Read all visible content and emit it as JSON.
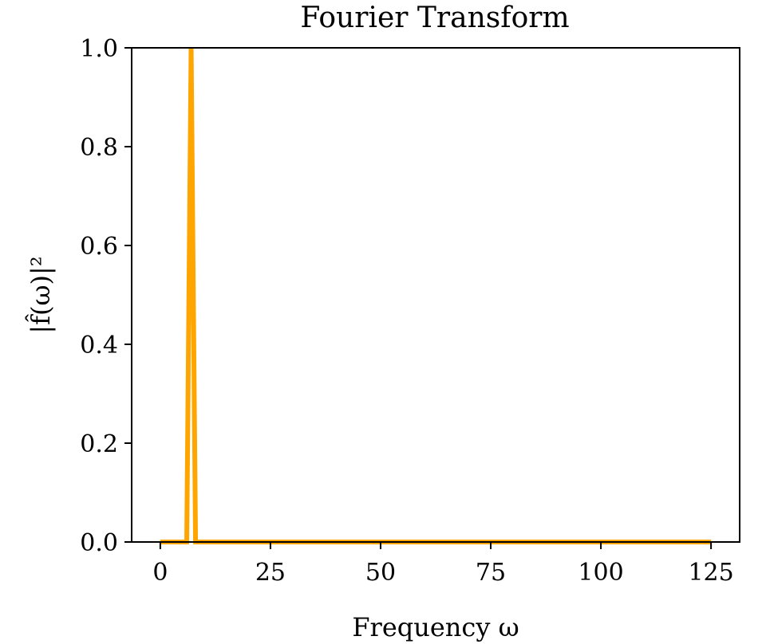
{
  "chart_data": {
    "type": "line",
    "title": "Fourier Transform",
    "xlabel": "Frequency ω",
    "ylabel": "|f̂(ω)|²",
    "xlim": [
      -6.5,
      131.5
    ],
    "ylim": [
      0,
      1.0
    ],
    "xticks": [
      0,
      25,
      50,
      75,
      100,
      125
    ],
    "xtick_labels": [
      "0",
      "25",
      "50",
      "75",
      "100",
      "125"
    ],
    "yticks": [
      0.0,
      0.2,
      0.4,
      0.6,
      0.8,
      1.0
    ],
    "ytick_labels": [
      "0.0",
      "0.2",
      "0.4",
      "0.6",
      "0.8",
      "1.0"
    ],
    "grid": false,
    "series": [
      {
        "color": "#FFA500",
        "x": [
          0,
          1,
          2,
          3,
          4,
          5,
          6,
          7,
          8,
          9,
          10,
          15,
          20,
          30,
          40,
          50,
          60,
          70,
          80,
          90,
          100,
          110,
          120,
          125
        ],
        "values": [
          0,
          0,
          0,
          0,
          0,
          0,
          0,
          1.0,
          0,
          0,
          0,
          0,
          0,
          0,
          0,
          0,
          0,
          0,
          0,
          0,
          0,
          0,
          0,
          0
        ]
      }
    ]
  }
}
